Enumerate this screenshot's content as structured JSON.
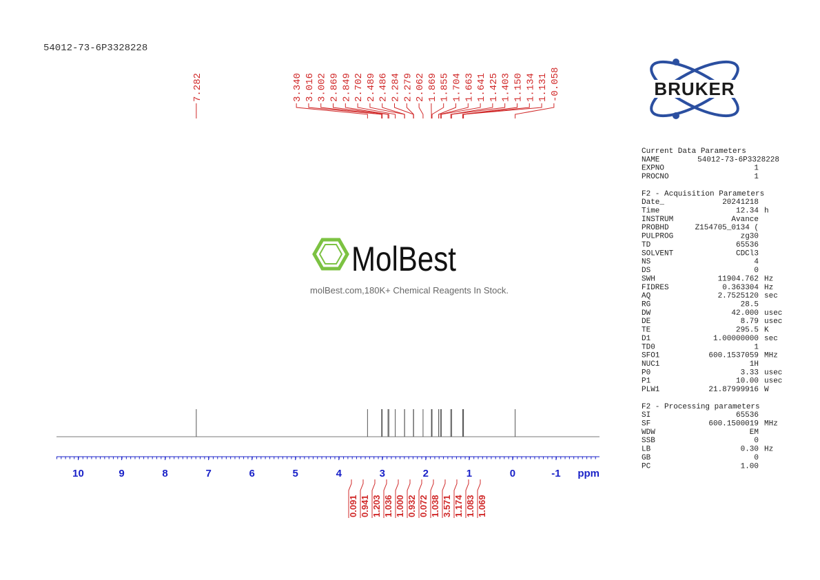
{
  "chart_data": {
    "type": "nmr",
    "title": "54012-73-6P3328228",
    "x_label": "ppm",
    "xlim": [
      10.5,
      -2.0
    ],
    "xticks": [
      10,
      9,
      8,
      7,
      6,
      5,
      4,
      3,
      2,
      1,
      0,
      -1
    ],
    "color": "#d02828",
    "axis_color": "#1a22c8",
    "peaks": {
      "values": [
        7.282,
        3.34,
        3.016,
        3.002,
        2.869,
        2.849,
        2.702,
        2.489,
        2.486,
        2.284,
        2.279,
        2.062,
        1.869,
        1.855,
        1.704,
        1.663,
        1.641,
        1.425,
        1.403,
        1.15,
        1.134,
        1.131,
        -0.058
      ],
      "value_labels": [
        "7.282",
        "3.340",
        "3.016",
        "3.002",
        "2.869",
        "2.849",
        "2.702",
        "2.489",
        "2.486",
        "2.284",
        "2.279",
        "2.062",
        "1.869",
        "1.855",
        "1.704",
        "1.663",
        "1.641",
        "1.425",
        "1.403",
        "1.150",
        "1.134",
        "1.131",
        "-0.058"
      ]
    },
    "integrals": {
      "values": [
        0.091,
        0.941,
        1.203,
        1.036,
        1,
        0.932,
        0.072,
        1.038,
        3.571,
        1.174,
        1.083,
        1.069
      ],
      "value_labels": [
        "0.091",
        "0.941",
        "1.203",
        "1.036",
        "1.000",
        "0.932",
        "0.072",
        "1.038",
        "3.571",
        "1.174",
        "1.083",
        "1.069"
      ]
    }
  },
  "logo": {
    "text": "BRUKER"
  },
  "watermark": {
    "brand": "MolBest",
    "tagline": "molBest.com,180K+ Chemical Reagents In Stock."
  },
  "parameters": [
    {
      "title": "Current Data Parameters",
      "rows": [
        {
          "name": "NAME",
          "value": "54012-73-6P3328228"
        },
        {
          "name": "EXPNO",
          "value": "1"
        },
        {
          "name": "PROCNO",
          "value": "1"
        }
      ]
    },
    {
      "title": "F2 - Acquisition Parameters",
      "rows": [
        {
          "name": "Date_",
          "value": "20241218"
        },
        {
          "name": "Time",
          "value": "12.34",
          "unit": "h"
        },
        {
          "name": "INSTRUM",
          "value": "Avance"
        },
        {
          "name": "PROBHD",
          "value": "Z154705_0134 ("
        },
        {
          "name": "PULPROG",
          "value": "zg30"
        },
        {
          "name": "TD",
          "value": "65536"
        },
        {
          "name": "SOLVENT",
          "value": "CDCl3"
        },
        {
          "name": "NS",
          "value": "4"
        },
        {
          "name": "DS",
          "value": "0"
        },
        {
          "name": "SWH",
          "value": "11904.762",
          "unit": "Hz"
        },
        {
          "name": "FIDRES",
          "value": "0.363304",
          "unit": "Hz"
        },
        {
          "name": "AQ",
          "value": "2.7525120",
          "unit": "sec"
        },
        {
          "name": "RG",
          "value": "28.5"
        },
        {
          "name": "DW",
          "value": "42.000",
          "unit": "usec"
        },
        {
          "name": "DE",
          "value": "8.79",
          "unit": "usec"
        },
        {
          "name": "TE",
          "value": "295.5",
          "unit": "K"
        },
        {
          "name": "D1",
          "value": "1.00000000",
          "unit": "sec"
        },
        {
          "name": "TD0",
          "value": "1"
        },
        {
          "name": "SFO1",
          "value": "600.1537059",
          "unit": "MHz"
        },
        {
          "name": "NUC1",
          "value": "1H"
        },
        {
          "name": "P0",
          "value": "3.33",
          "unit": "usec"
        },
        {
          "name": "P1",
          "value": "10.00",
          "unit": "usec"
        },
        {
          "name": "PLW1",
          "value": "21.87999916",
          "unit": "W"
        }
      ]
    },
    {
      "title": "F2 - Processing parameters",
      "rows": [
        {
          "name": "SI",
          "value": "65536"
        },
        {
          "name": "SF",
          "value": "600.1500019",
          "unit": "MHz"
        },
        {
          "name": "WDW",
          "value": "EM"
        },
        {
          "name": "SSB",
          "value": "0"
        },
        {
          "name": "LB",
          "value": "0.30",
          "unit": "Hz"
        },
        {
          "name": "GB",
          "value": "0"
        },
        {
          "name": "PC",
          "value": "1.00"
        }
      ]
    }
  ]
}
